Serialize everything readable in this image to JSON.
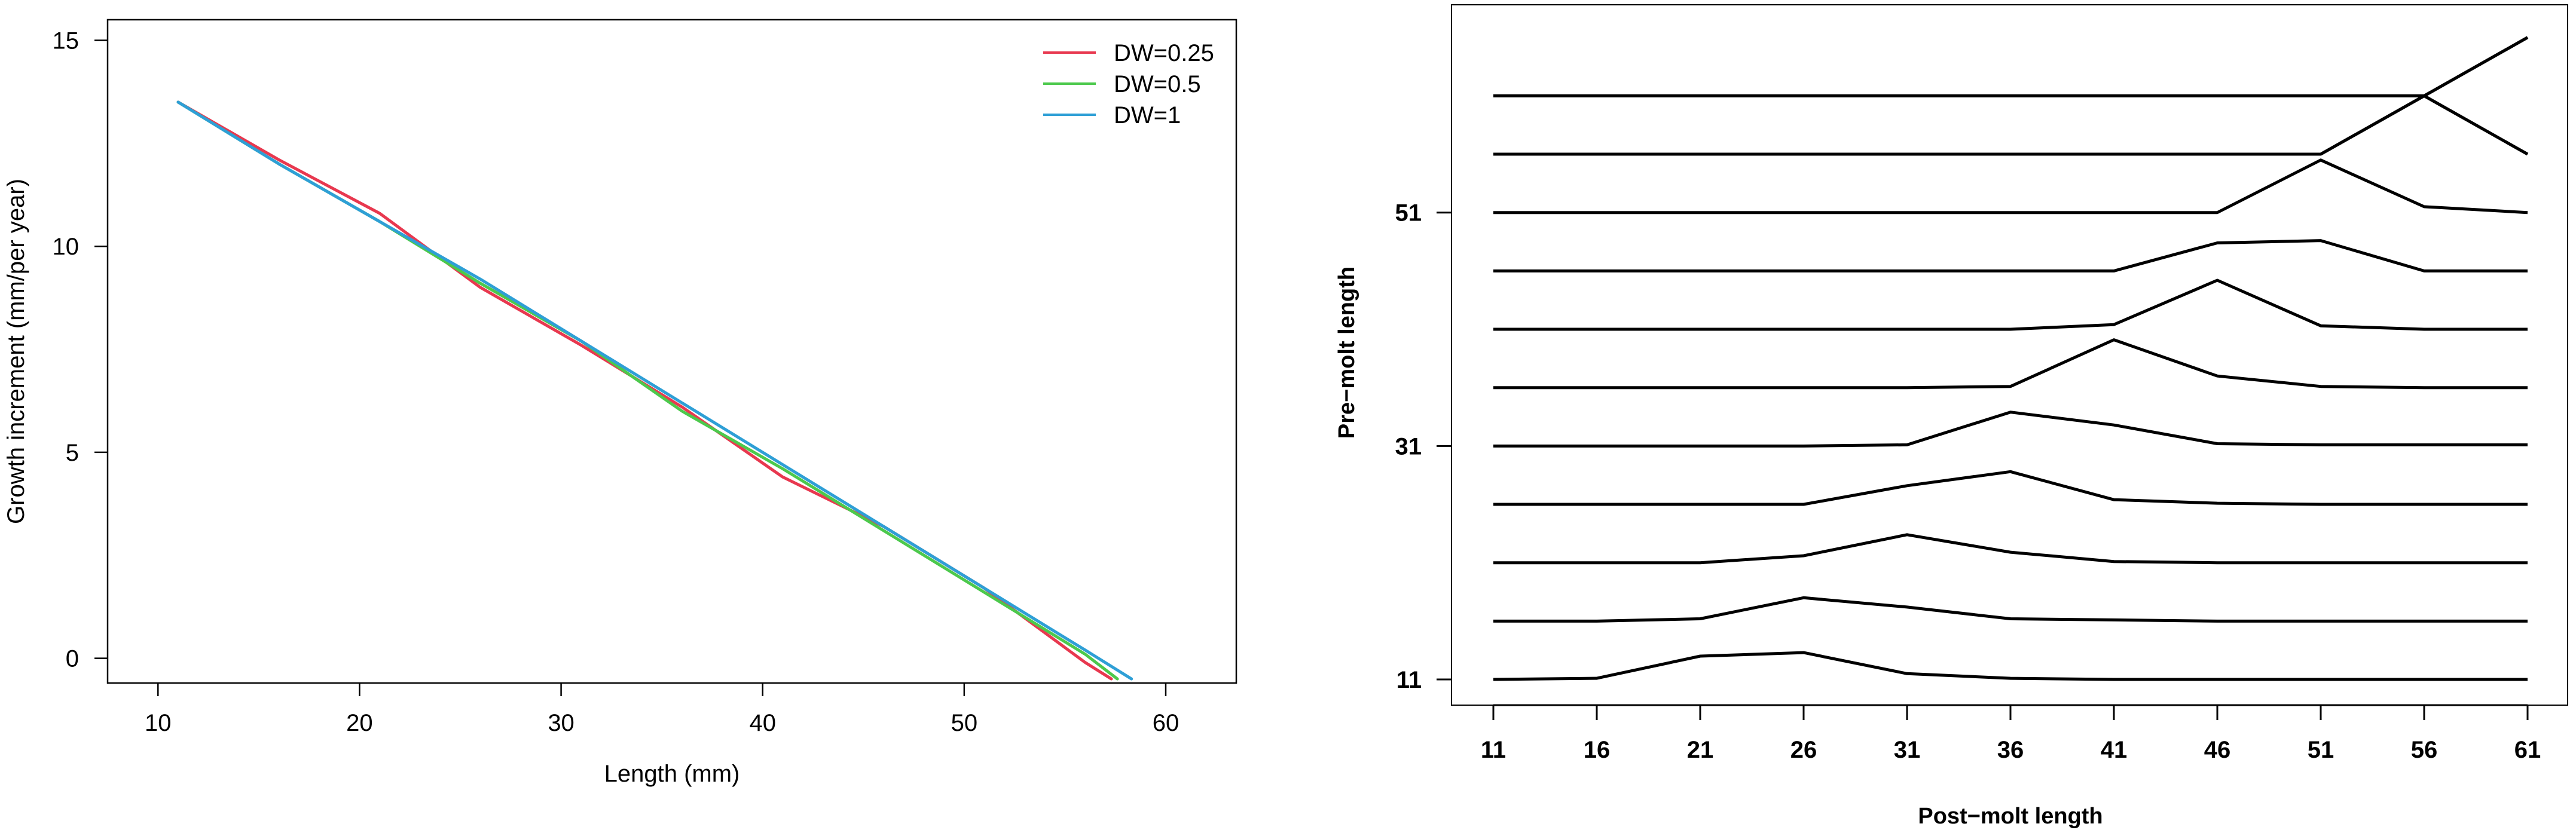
{
  "chart_data": [
    {
      "type": "line",
      "title": "",
      "xlabel": "Length (mm)",
      "ylabel": "Growth increment (mm/per year)",
      "xlim": [
        7.5,
        63.5
      ],
      "ylim": [
        -0.6,
        15.5
      ],
      "xticks": [
        10,
        20,
        30,
        40,
        50,
        60
      ],
      "yticks": [
        0,
        5,
        10,
        15
      ],
      "grid": false,
      "legend_position": "top-right",
      "series": [
        {
          "name": "DW=0.25",
          "color": "#e8384f",
          "points": [
            [
              11,
              13.5
            ],
            [
              16,
              12.1
            ],
            [
              21,
              10.8
            ],
            [
              26,
              9.0
            ],
            [
              31,
              7.6
            ],
            [
              36,
              6.1
            ],
            [
              41,
              4.4
            ],
            [
              46,
              3.2
            ],
            [
              51,
              1.7
            ],
            [
              56,
              -0.1
            ],
            [
              57.3,
              -0.5
            ]
          ]
        },
        {
          "name": "DW=0.5",
          "color": "#4cc94c",
          "points": [
            [
              11,
              13.5
            ],
            [
              16,
              12.0
            ],
            [
              21,
              10.6
            ],
            [
              26,
              9.1
            ],
            [
              31,
              7.7
            ],
            [
              36,
              6.0
            ],
            [
              41,
              4.6
            ],
            [
              46,
              3.1
            ],
            [
              51,
              1.6
            ],
            [
              56,
              0.1
            ],
            [
              57.6,
              -0.5
            ]
          ]
        },
        {
          "name": "DW=1",
          "color": "#2e9fd6",
          "points": [
            [
              11,
              13.5
            ],
            [
              16,
              12.0
            ],
            [
              21,
              10.6
            ],
            [
              26,
              9.2
            ],
            [
              31,
              7.7
            ],
            [
              36,
              6.2
            ],
            [
              41,
              4.7
            ],
            [
              46,
              3.2
            ],
            [
              51,
              1.7
            ],
            [
              56,
              0.2
            ],
            [
              58.3,
              -0.5
            ]
          ]
        }
      ]
    },
    {
      "type": "line",
      "title": "",
      "xlabel": "Post−molt length",
      "ylabel": "Pre−molt length",
      "x": [
        11,
        16,
        21,
        26,
        31,
        36,
        41,
        46,
        51,
        56,
        61
      ],
      "xticks": [
        "11",
        "16",
        "21",
        "26",
        "31",
        "36",
        "41",
        "46",
        "51",
        "56",
        "61"
      ],
      "yticks": [
        11,
        31,
        51
      ],
      "ylim": [
        8.8,
        68.8
      ],
      "grid": false,
      "line_color": "#000000",
      "series": [
        {
          "pre": 11,
          "values": [
            11,
            11.1,
            13.0,
            13.3,
            11.5,
            11.1,
            11,
            11,
            11,
            11,
            11
          ]
        },
        {
          "pre": 16,
          "values": [
            16,
            16,
            16.2,
            18.0,
            17.2,
            16.2,
            16.1,
            16,
            16,
            16,
            16
          ]
        },
        {
          "pre": 21,
          "values": [
            21,
            21,
            21,
            21.6,
            23.4,
            21.9,
            21.1,
            21,
            21,
            21,
            21
          ]
        },
        {
          "pre": 26,
          "values": [
            26,
            26,
            26,
            26,
            27.6,
            28.8,
            26.4,
            26.1,
            26,
            26,
            26
          ]
        },
        {
          "pre": 31,
          "values": [
            31,
            31,
            31,
            31,
            31.1,
            33.9,
            32.8,
            31.2,
            31.1,
            31.1,
            31.1
          ]
        },
        {
          "pre": 36,
          "values": [
            36,
            36,
            36,
            36,
            36,
            36.1,
            40.1,
            37.0,
            36.1,
            36,
            36
          ]
        },
        {
          "pre": 41,
          "values": [
            41,
            41,
            41,
            41,
            41,
            41,
            41.4,
            45.2,
            41.3,
            41.0,
            41
          ]
        },
        {
          "pre": 46,
          "values": [
            46,
            46,
            46,
            46,
            46,
            46,
            46,
            48.4,
            48.6,
            46.0,
            46
          ]
        },
        {
          "pre": 51,
          "values": [
            51,
            51,
            51,
            51,
            51,
            51,
            51,
            51,
            55.5,
            51.5,
            51
          ]
        },
        {
          "pre": 56,
          "values": [
            56,
            56,
            56,
            56,
            56,
            56,
            56,
            56,
            56,
            61,
            56
          ]
        },
        {
          "pre": 61,
          "values": [
            61,
            61,
            61,
            61,
            61,
            61,
            61,
            61,
            61,
            61,
            66
          ]
        },
        {
          "values": [
            61,
            61,
            61,
            61,
            61,
            61,
            61,
            61,
            61,
            61,
            66
          ]
        },
        {
          "values": [
            56,
            56,
            56,
            56,
            56,
            56,
            56,
            56,
            56,
            61,
            56
          ]
        }
      ]
    }
  ]
}
